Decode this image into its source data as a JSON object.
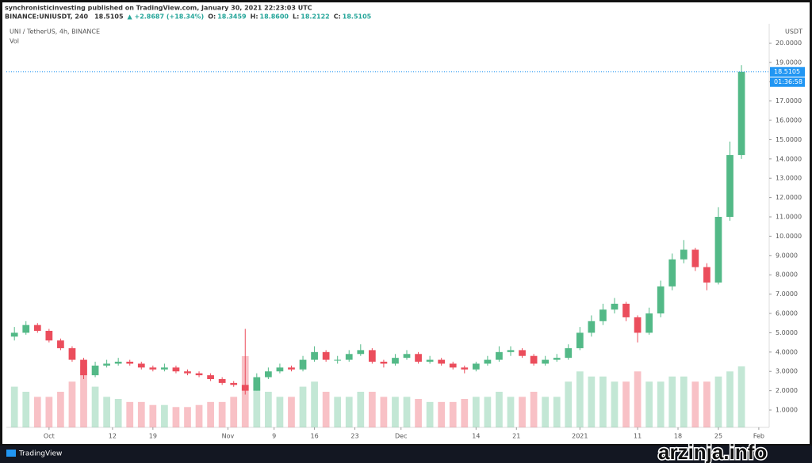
{
  "header": {
    "publisher": "synchronisticinvesting published on TradingView.com, January 30, 2021 22:23:03 UTC",
    "symbol": "BINANCE:UNIUSDT, 240",
    "last": "18.5105",
    "change": "▲ +2.8687 (+18.34%)",
    "ohlc": [
      {
        "label": "O:",
        "value": "18.3459"
      },
      {
        "label": "H:",
        "value": "18.8600"
      },
      {
        "label": "L:",
        "value": "18.2122"
      },
      {
        "label": "C:",
        "value": "18.5105"
      }
    ]
  },
  "footer": {
    "brand": "TradingView",
    "watermark": "arzinja.info"
  },
  "chart_data": {
    "type": "candlestick",
    "title": "UNI / TetherUS, 4h, BINANCE",
    "volume_label": "Vol",
    "y_unit": "USDT",
    "up_color": "#53b987",
    "down_color": "#eb4d5c",
    "last_price_color": "#2196f3",
    "last_price_label": "18.5105",
    "countdown": "01:36:58",
    "x": [
      -6,
      -4,
      -2,
      0,
      2,
      4,
      6,
      8,
      10,
      12,
      14,
      16,
      18,
      20,
      22,
      24,
      26,
      28,
      30,
      32,
      34,
      36,
      38,
      40,
      42,
      44,
      46,
      48,
      50,
      52,
      54,
      56,
      58,
      60,
      62,
      64,
      66,
      68,
      70,
      72,
      74,
      76,
      78,
      80,
      82,
      84,
      86,
      88,
      90,
      92,
      94,
      96,
      98,
      100,
      102,
      104,
      106,
      108,
      110,
      112,
      114,
      116,
      118,
      120
    ],
    "open": [
      4.8,
      5.0,
      5.4,
      5.1,
      4.6,
      4.2,
      3.6,
      2.8,
      3.3,
      3.4,
      3.5,
      3.4,
      3.2,
      3.1,
      3.2,
      3.0,
      2.9,
      2.8,
      2.6,
      2.4,
      2.3,
      2.0,
      2.7,
      3.0,
      3.2,
      3.1,
      3.6,
      4.0,
      3.6,
      3.6,
      3.9,
      4.1,
      3.5,
      3.4,
      3.7,
      3.9,
      3.5,
      3.6,
      3.4,
      3.2,
      3.1,
      3.4,
      3.6,
      4.0,
      4.1,
      3.8,
      3.4,
      3.6,
      3.7,
      4.2,
      5.0,
      5.6,
      6.2,
      6.5,
      5.8,
      5.0,
      6.0,
      7.4,
      8.8,
      9.3,
      8.4,
      7.6,
      11.0,
      14.2
    ],
    "high": [
      5.3,
      5.6,
      5.5,
      5.2,
      4.7,
      4.3,
      3.7,
      3.5,
      3.6,
      3.7,
      3.6,
      3.5,
      3.3,
      3.4,
      3.3,
      3.1,
      3.0,
      2.9,
      2.7,
      2.5,
      5.2,
      2.9,
      3.2,
      3.4,
      3.3,
      3.8,
      4.3,
      4.1,
      3.8,
      4.1,
      4.4,
      4.2,
      3.6,
      3.9,
      4.1,
      4.0,
      3.8,
      3.7,
      3.5,
      3.3,
      3.5,
      3.8,
      4.3,
      4.3,
      4.2,
      3.9,
      3.8,
      3.9,
      4.4,
      5.3,
      5.9,
      6.5,
      6.8,
      6.6,
      5.9,
      6.3,
      7.7,
      9.1,
      9.8,
      9.4,
      8.6,
      11.5,
      14.9,
      18.86
    ],
    "low": [
      4.6,
      4.9,
      5.0,
      4.5,
      4.1,
      3.5,
      2.6,
      2.7,
      3.2,
      3.3,
      3.3,
      3.1,
      3.0,
      3.0,
      2.9,
      2.8,
      2.7,
      2.5,
      2.3,
      2.2,
      1.8,
      2.0,
      2.6,
      2.9,
      3.0,
      3.0,
      3.5,
      3.5,
      3.4,
      3.5,
      3.8,
      3.4,
      3.2,
      3.3,
      3.6,
      3.4,
      3.4,
      3.3,
      3.1,
      2.9,
      3.0,
      3.3,
      3.5,
      3.8,
      3.7,
      3.3,
      3.3,
      3.5,
      3.6,
      4.1,
      4.8,
      5.4,
      6.0,
      5.6,
      4.5,
      4.9,
      5.8,
      7.2,
      8.6,
      8.2,
      7.2,
      7.5,
      10.8,
      14.0
    ],
    "close": [
      5.0,
      5.4,
      5.1,
      4.6,
      4.2,
      3.6,
      2.8,
      3.3,
      3.4,
      3.5,
      3.4,
      3.2,
      3.1,
      3.2,
      3.0,
      2.9,
      2.8,
      2.6,
      2.4,
      2.3,
      2.0,
      2.7,
      3.0,
      3.2,
      3.1,
      3.6,
      4.0,
      3.6,
      3.6,
      3.9,
      4.1,
      3.5,
      3.4,
      3.7,
      3.9,
      3.5,
      3.6,
      3.4,
      3.2,
      3.1,
      3.4,
      3.6,
      4.0,
      4.1,
      3.8,
      3.4,
      3.6,
      3.7,
      4.2,
      5.0,
      5.6,
      6.2,
      6.5,
      5.8,
      5.0,
      6.0,
      7.4,
      8.8,
      9.3,
      8.4,
      7.6,
      11.0,
      14.2,
      18.5105
    ],
    "volume": [
      40,
      35,
      30,
      30,
      35,
      45,
      60,
      40,
      30,
      28,
      25,
      25,
      22,
      22,
      20,
      20,
      22,
      25,
      25,
      30,
      70,
      45,
      35,
      30,
      30,
      40,
      45,
      35,
      30,
      30,
      35,
      35,
      30,
      30,
      30,
      28,
      25,
      25,
      25,
      28,
      30,
      30,
      35,
      30,
      30,
      35,
      30,
      30,
      45,
      55,
      50,
      50,
      45,
      45,
      55,
      45,
      45,
      50,
      50,
      45,
      45,
      50,
      55,
      60
    ],
    "xlim": [
      -7.4,
      124.8
    ],
    "xticks": [
      {
        "value": 0,
        "label": "Oct"
      },
      {
        "value": 11,
        "label": "12"
      },
      {
        "value": 18,
        "label": "19"
      },
      {
        "value": 31,
        "label": "Nov"
      },
      {
        "value": 39,
        "label": "9"
      },
      {
        "value": 46,
        "label": "16"
      },
      {
        "value": 53,
        "label": "23"
      },
      {
        "value": 61,
        "label": "Dec"
      },
      {
        "value": 74,
        "label": "14"
      },
      {
        "value": 81,
        "label": "21"
      },
      {
        "value": 92,
        "label": "2021"
      },
      {
        "value": 102,
        "label": "11"
      },
      {
        "value": 109,
        "label": "18"
      },
      {
        "value": 116,
        "label": "25"
      },
      {
        "value": 123,
        "label": "Feb"
      }
    ],
    "ylim": [
      0.1,
      21.0
    ],
    "yticks": [
      {
        "value": 1,
        "label": "1.0000"
      },
      {
        "value": 2,
        "label": "2.0000"
      },
      {
        "value": 3,
        "label": "3.0000"
      },
      {
        "value": 4,
        "label": "4.0000"
      },
      {
        "value": 5,
        "label": "5.0000"
      },
      {
        "value": 6,
        "label": "6.0000"
      },
      {
        "value": 7,
        "label": "7.0000"
      },
      {
        "value": 8,
        "label": "8.0000"
      },
      {
        "value": 9,
        "label": "9.0000"
      },
      {
        "value": 10,
        "label": "10.0000"
      },
      {
        "value": 11,
        "label": "11.0000"
      },
      {
        "value": 12,
        "label": "12.0000"
      },
      {
        "value": 13,
        "label": "13.0000"
      },
      {
        "value": 14,
        "label": "14.0000"
      },
      {
        "value": 15,
        "label": "15.0000"
      },
      {
        "value": 16,
        "label": "16.0000"
      },
      {
        "value": 17,
        "label": "17.0000"
      },
      {
        "value": 18,
        "label": "18.0000"
      },
      {
        "value": 19,
        "label": "19.0000"
      },
      {
        "value": 20,
        "label": "20.0000"
      }
    ]
  }
}
